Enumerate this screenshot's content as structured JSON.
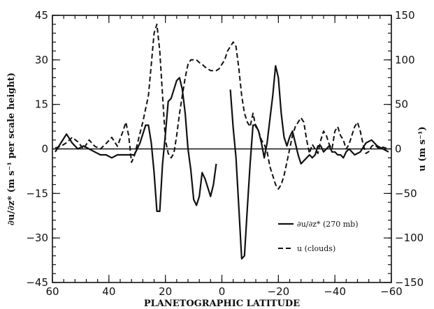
{
  "chart_data": {
    "type": "line",
    "xlabel": "PLANETOGRAPHIC LATITUDE",
    "ylabel_left": "∂u/∂z* (m s⁻¹ per scale height)",
    "ylabel_right": "u (m s⁻¹)",
    "x_range": [
      60,
      -60
    ],
    "x_ticks": [
      60,
      40,
      20,
      0,
      -20,
      -40,
      -60
    ],
    "y_left_range": [
      -45,
      45
    ],
    "y_left_ticks": [
      -45,
      -30,
      -15,
      0,
      15,
      30,
      45
    ],
    "y_right_range": [
      -150,
      150
    ],
    "y_right_ticks": [
      -150,
      -100,
      -50,
      0,
      50,
      100,
      150
    ],
    "legend": {
      "placement": "bottom-right",
      "entries": [
        {
          "label": "∂u/∂z* (270 mb)",
          "style": "solid"
        },
        {
          "label": "u (clouds)",
          "style": "dashed"
        }
      ]
    },
    "series": [
      {
        "name": "∂u/∂z* (270 mb)",
        "axis": "left",
        "style": "solid",
        "segments": [
          [
            [
              59,
              -1
            ],
            [
              57,
              2
            ],
            [
              55,
              5
            ],
            [
              53,
              2
            ],
            [
              51,
              0
            ],
            [
              49,
              1
            ],
            [
              47,
              0
            ],
            [
              45,
              -1
            ],
            [
              43,
              -2
            ],
            [
              41,
              -2
            ],
            [
              39,
              -3
            ],
            [
              37,
              -2
            ],
            [
              35,
              -2
            ],
            [
              33,
              -2
            ],
            [
              31,
              -2
            ],
            [
              29,
              2
            ],
            [
              27,
              8
            ],
            [
              26,
              8
            ],
            [
              25,
              2
            ],
            [
              24,
              -8
            ],
            [
              23,
              -21
            ],
            [
              22,
              -21
            ],
            [
              21,
              -5
            ],
            [
              20,
              5
            ],
            [
              19,
              16
            ],
            [
              18,
              17
            ],
            [
              17,
              20
            ],
            [
              16,
              23
            ],
            [
              15,
              24
            ],
            [
              14,
              20
            ],
            [
              13,
              12
            ],
            [
              12,
              0
            ],
            [
              11,
              -7
            ],
            [
              10,
              -17
            ],
            [
              9,
              -19
            ],
            [
              8,
              -16
            ],
            [
              7,
              -8
            ],
            [
              6,
              -10
            ],
            [
              5,
              -13
            ],
            [
              4,
              -16
            ],
            [
              3,
              -12
            ],
            [
              2,
              -5
            ]
          ],
          [
            [
              -3,
              20
            ],
            [
              -4,
              7
            ],
            [
              -5,
              -3
            ],
            [
              -6,
              -20
            ],
            [
              -7,
              -37
            ],
            [
              -8,
              -36
            ],
            [
              -9,
              -20
            ],
            [
              -10,
              -5
            ],
            [
              -11,
              8
            ],
            [
              -12,
              8
            ],
            [
              -13,
              6
            ],
            [
              -14,
              2
            ],
            [
              -15,
              -3
            ],
            [
              -16,
              2
            ],
            [
              -17,
              10
            ],
            [
              -18,
              18
            ],
            [
              -19,
              28
            ],
            [
              -20,
              24
            ],
            [
              -21,
              12
            ],
            [
              -22,
              4
            ],
            [
              -23,
              1
            ],
            [
              -24,
              4
            ],
            [
              -25,
              6
            ],
            [
              -26,
              2
            ],
            [
              -27,
              -2
            ],
            [
              -28,
              -5
            ],
            [
              -29,
              -4
            ],
            [
              -30,
              -3
            ],
            [
              -31,
              -2
            ],
            [
              -32,
              -3
            ],
            [
              -33,
              -2
            ],
            [
              -34,
              1
            ],
            [
              -35,
              1
            ],
            [
              -36,
              -1
            ],
            [
              -37,
              0
            ],
            [
              -38,
              1
            ],
            [
              -39,
              -1
            ],
            [
              -40,
              -1
            ],
            [
              -41,
              -2
            ],
            [
              -42,
              -2
            ],
            [
              -43,
              -3
            ],
            [
              -44,
              -1
            ],
            [
              -45,
              0
            ],
            [
              -47,
              -2
            ],
            [
              -49,
              -1
            ],
            [
              -51,
              2
            ],
            [
              -53,
              3
            ],
            [
              -55,
              1
            ],
            [
              -57,
              0
            ],
            [
              -59,
              -1
            ]
          ]
        ]
      },
      {
        "name": "u (clouds)",
        "axis": "right",
        "style": "dashed",
        "segments": [
          [
            [
              59,
              1
            ],
            [
              57,
              3
            ],
            [
              55,
              7
            ],
            [
              53,
              13
            ],
            [
              51,
              8
            ],
            [
              49,
              0
            ],
            [
              47,
              10
            ],
            [
              45,
              3
            ],
            [
              43,
              0
            ],
            [
              41,
              6
            ],
            [
              39,
              13
            ],
            [
              37,
              3
            ],
            [
              35,
              20
            ],
            [
              34,
              30
            ],
            [
              33,
              15
            ],
            [
              32,
              -15
            ],
            [
              31,
              -8
            ],
            [
              30,
              5
            ],
            [
              28,
              30
            ],
            [
              26,
              60
            ],
            [
              25,
              95
            ],
            [
              24,
              130
            ],
            [
              23,
              140
            ],
            [
              22,
              110
            ],
            [
              21,
              60
            ],
            [
              20,
              10
            ],
            [
              19,
              -5
            ],
            [
              18,
              -10
            ],
            [
              17,
              -5
            ],
            [
              16,
              15
            ],
            [
              15,
              40
            ],
            [
              14,
              60
            ],
            [
              13,
              80
            ],
            [
              12,
              95
            ],
            [
              11,
              100
            ],
            [
              10,
              100
            ],
            [
              9,
              100
            ],
            [
              8,
              97
            ],
            [
              7,
              95
            ],
            [
              6,
              92
            ],
            [
              5,
              90
            ],
            [
              4,
              88
            ],
            [
              3,
              88
            ],
            [
              2,
              88
            ],
            [
              1,
              90
            ],
            [
              0,
              95
            ],
            [
              -1,
              100
            ],
            [
              -2,
              110
            ],
            [
              -3,
              115
            ],
            [
              -4,
              120
            ],
            [
              -5,
              115
            ],
            [
              -6,
              90
            ],
            [
              -7,
              60
            ],
            [
              -8,
              40
            ],
            [
              -9,
              30
            ],
            [
              -10,
              25
            ],
            [
              -11,
              40
            ],
            [
              -12,
              25
            ],
            [
              -13,
              20
            ],
            [
              -14,
              10
            ],
            [
              -15,
              5
            ],
            [
              -16,
              -3
            ],
            [
              -17,
              -20
            ],
            [
              -18,
              -30
            ],
            [
              -19,
              -40
            ],
            [
              -20,
              -45
            ],
            [
              -21,
              -40
            ],
            [
              -22,
              -30
            ],
            [
              -23,
              -15
            ],
            [
              -24,
              0
            ],
            [
              -25,
              15
            ],
            [
              -26,
              25
            ],
            [
              -27,
              30
            ],
            [
              -28,
              35
            ],
            [
              -29,
              30
            ],
            [
              -30,
              10
            ],
            [
              -31,
              -5
            ],
            [
              -32,
              5
            ],
            [
              -33,
              0
            ],
            [
              -34,
              -5
            ],
            [
              -35,
              10
            ],
            [
              -36,
              20
            ],
            [
              -37,
              15
            ],
            [
              -38,
              5
            ],
            [
              -39,
              0
            ],
            [
              -40,
              20
            ],
            [
              -41,
              25
            ],
            [
              -42,
              15
            ],
            [
              -43,
              10
            ],
            [
              -44,
              0
            ],
            [
              -45,
              5
            ],
            [
              -46,
              15
            ],
            [
              -47,
              25
            ],
            [
              -48,
              30
            ],
            [
              -49,
              20
            ],
            [
              -50,
              5
            ],
            [
              -51,
              -5
            ],
            [
              -52,
              -3
            ],
            [
              -53,
              3
            ],
            [
              -54,
              5
            ],
            [
              -55,
              2
            ],
            [
              -56,
              0
            ],
            [
              -57,
              2
            ],
            [
              -58,
              1
            ],
            [
              -59,
              0
            ]
          ]
        ]
      }
    ]
  }
}
